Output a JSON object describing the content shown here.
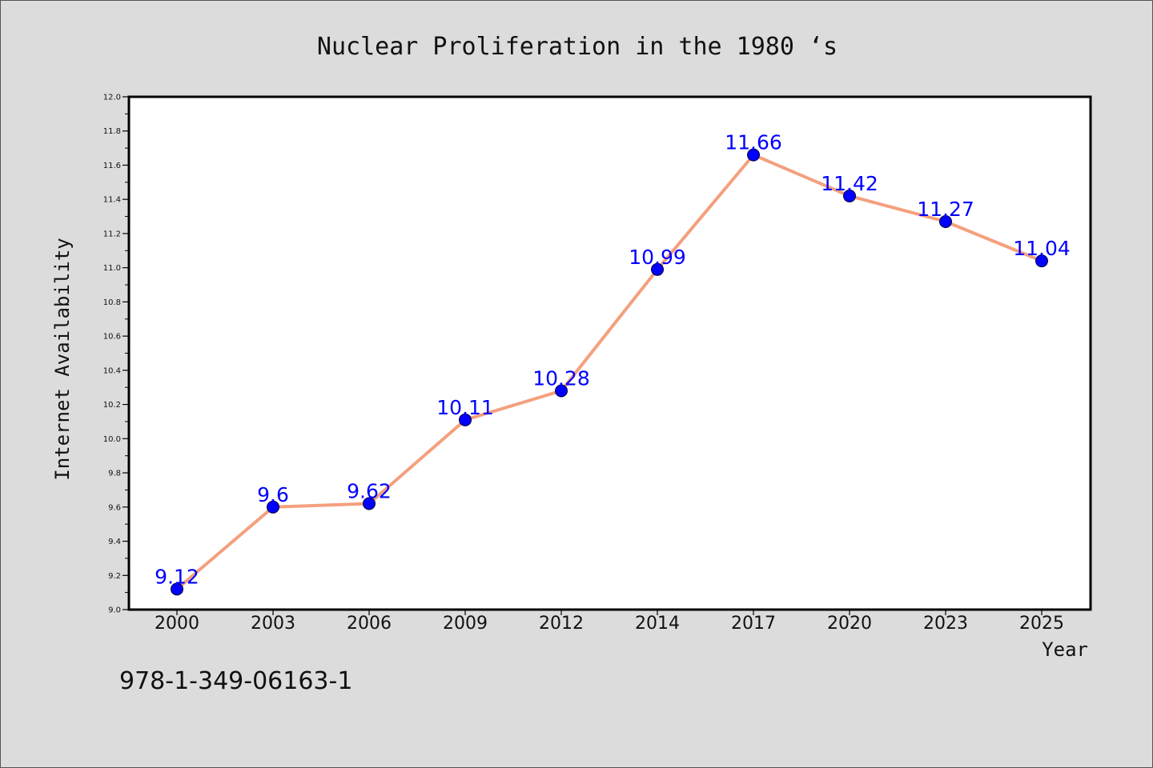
{
  "chart_data": {
    "type": "line",
    "title": "Nuclear Proliferation in the 1980 ‘s",
    "xlabel": "Year",
    "ylabel": "Internet Availability",
    "categories": [
      "2000",
      "2003",
      "2006",
      "2009",
      "2012",
      "2014",
      "2017",
      "2020",
      "2023",
      "2025"
    ],
    "series": [
      {
        "values": [
          9.12,
          9.6,
          9.62,
          10.11,
          10.28,
          10.99,
          11.66,
          11.42,
          11.27,
          11.04
        ],
        "labels": [
          "9.12",
          "9.6",
          "9.62",
          "10.11",
          "10.28",
          "10.99",
          "11.66",
          "11.42",
          "11.27",
          "11.04"
        ],
        "line_color": "#f4a07e",
        "marker_color": "#0000ff"
      }
    ],
    "ylim": [
      9.0,
      12.0
    ],
    "yticks": [
      "9.0",
      "9.2",
      "9.4",
      "9.6",
      "9.8",
      "10.0",
      "10.2",
      "10.4",
      "10.6",
      "10.8",
      "11.0",
      "11.2",
      "11.4",
      "11.6",
      "11.8",
      "12.0"
    ],
    "grid": false,
    "legend": "none"
  },
  "footer": {
    "isbn": "978-1-349-06163-1"
  },
  "colors": {
    "background": "#dcdcdc",
    "plot_background": "#ffffff",
    "label_color": "#0000ff"
  }
}
